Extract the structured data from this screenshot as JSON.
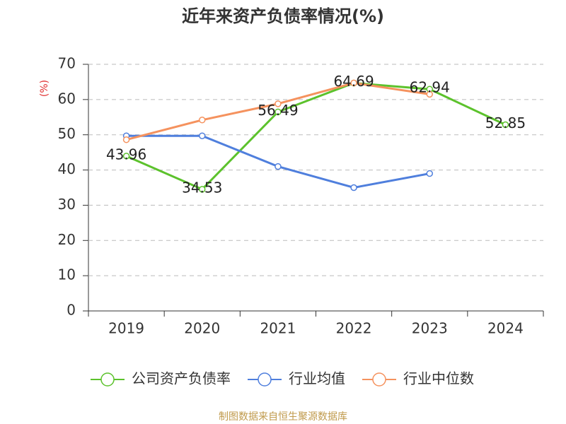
{
  "chart_data": {
    "type": "line",
    "title": "近年来资产负债率情况(%)",
    "y_label": "(%)",
    "categories": [
      "2019",
      "2020",
      "2021",
      "2022",
      "2023",
      "2024"
    ],
    "series": [
      {
        "name": "公司资产负债率",
        "color": "#5cc22c",
        "values": [
          43.96,
          34.53,
          56.49,
          64.69,
          62.94,
          52.85
        ],
        "show_labels": true
      },
      {
        "name": "行业均值",
        "color": "#4f7fdd",
        "values": [
          49.7,
          49.7,
          41.0,
          35.0,
          39.0,
          null
        ],
        "show_labels": false
      },
      {
        "name": "行业中位数",
        "color": "#f5925e",
        "values": [
          48.6,
          54.2,
          58.8,
          64.7,
          61.5,
          null
        ],
        "show_labels": false
      }
    ],
    "ylim": [
      0,
      70
    ],
    "yticks": [
      0,
      10,
      20,
      30,
      40,
      50,
      60,
      70
    ],
    "grid": true,
    "legend": "bottom",
    "source": "制图数据来自恒生聚源数据库"
  }
}
